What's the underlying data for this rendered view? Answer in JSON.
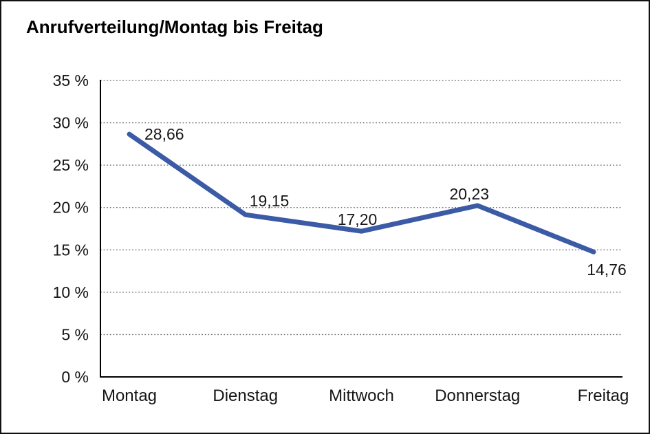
{
  "chart_data": {
    "type": "line",
    "title": "Anrufverteilung/Montag bis Freitag",
    "categories": [
      "Montag",
      "Dienstag",
      "Mittwoch",
      "Donnerstag",
      "Freitag"
    ],
    "series": [
      {
        "name": "Anrufverteilung",
        "values": [
          28.66,
          19.15,
          17.2,
          20.23,
          14.76
        ]
      }
    ],
    "value_labels": [
      "28,66",
      "19,15",
      "17,20",
      "20,23",
      "14,76"
    ],
    "y_tick_labels": [
      "0 %",
      "5 %",
      "10 %",
      "15 %",
      "20 %",
      "25 %",
      "30 %",
      "35 %"
    ],
    "ylim": [
      0,
      35
    ],
    "y_step": 5,
    "xlabel": "",
    "ylabel": "",
    "grid": "horizontal-dotted",
    "legend": "none",
    "colors": {
      "line": "#3B5BA6",
      "axis": "#000000",
      "gridline": "#666666",
      "text": "#161616",
      "background": "#ffffff",
      "frame_border": "#111111"
    }
  }
}
